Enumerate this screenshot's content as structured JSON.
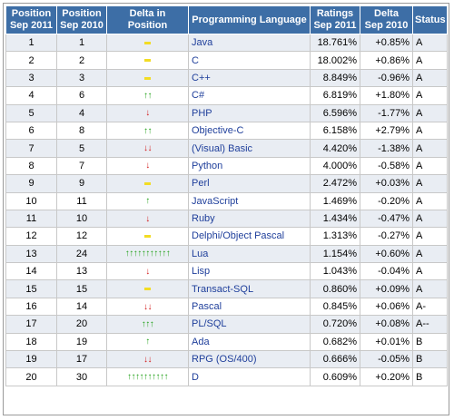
{
  "columns": [
    "Position Sep 2011",
    "Position Sep 2010",
    "Delta in Position",
    "Programming Language",
    "Ratings Sep 2011",
    "Delta Sep 2010",
    "Status"
  ],
  "headers": {
    "pos2011": [
      "Position",
      "Sep 2011"
    ],
    "pos2010": [
      "Position",
      "Sep 2010"
    ],
    "delta_pos": "Delta in Position",
    "language": "Programming Language",
    "ratings": [
      "Ratings",
      "Sep 2011"
    ],
    "delta": [
      "Delta",
      "Sep 2010"
    ],
    "status": "Status"
  },
  "colors": {
    "header_bg": "#3d6ea6",
    "link": "#1f3f9b",
    "arrow_up": "#24a21c",
    "arrow_down": "#d21a1a",
    "no_change": "#f2dc24"
  },
  "rows": [
    {
      "pos2011": "1",
      "pos2010": "1",
      "delta_pos": "=",
      "language": "Java",
      "ratings": "18.761%",
      "delta": "+0.85%",
      "status": "A"
    },
    {
      "pos2011": "2",
      "pos2010": "2",
      "delta_pos": "=",
      "language": "C",
      "ratings": "18.002%",
      "delta": "+0.86%",
      "status": "A"
    },
    {
      "pos2011": "3",
      "pos2010": "3",
      "delta_pos": "=",
      "language": "C++",
      "ratings": "8.849%",
      "delta": "-0.96%",
      "status": "A"
    },
    {
      "pos2011": "4",
      "pos2010": "6",
      "delta_pos": "up2",
      "language": "C#",
      "ratings": "6.819%",
      "delta": "+1.80%",
      "status": "A"
    },
    {
      "pos2011": "5",
      "pos2010": "4",
      "delta_pos": "down1",
      "language": "PHP",
      "ratings": "6.596%",
      "delta": "-1.77%",
      "status": "A"
    },
    {
      "pos2011": "6",
      "pos2010": "8",
      "delta_pos": "up2",
      "language": "Objective-C",
      "ratings": "6.158%",
      "delta": "+2.79%",
      "status": "A"
    },
    {
      "pos2011": "7",
      "pos2010": "5",
      "delta_pos": "down2",
      "language": "(Visual) Basic",
      "ratings": "4.420%",
      "delta": "-1.38%",
      "status": "A"
    },
    {
      "pos2011": "8",
      "pos2010": "7",
      "delta_pos": "down1",
      "language": "Python",
      "ratings": "4.000%",
      "delta": "-0.58%",
      "status": "A"
    },
    {
      "pos2011": "9",
      "pos2010": "9",
      "delta_pos": "=",
      "language": "Perl",
      "ratings": "2.472%",
      "delta": "+0.03%",
      "status": "A"
    },
    {
      "pos2011": "10",
      "pos2010": "11",
      "delta_pos": "up1",
      "language": "JavaScript",
      "ratings": "1.469%",
      "delta": "-0.20%",
      "status": "A"
    },
    {
      "pos2011": "11",
      "pos2010": "10",
      "delta_pos": "down1",
      "language": "Ruby",
      "ratings": "1.434%",
      "delta": "-0.47%",
      "status": "A"
    },
    {
      "pos2011": "12",
      "pos2010": "12",
      "delta_pos": "=",
      "language": "Delphi/Object Pascal",
      "ratings": "1.313%",
      "delta": "-0.27%",
      "status": "A"
    },
    {
      "pos2011": "13",
      "pos2010": "24",
      "delta_pos": "up11",
      "language": "Lua",
      "ratings": "1.154%",
      "delta": "+0.60%",
      "status": "A"
    },
    {
      "pos2011": "14",
      "pos2010": "13",
      "delta_pos": "down1",
      "language": "Lisp",
      "ratings": "1.043%",
      "delta": "-0.04%",
      "status": "A"
    },
    {
      "pos2011": "15",
      "pos2010": "15",
      "delta_pos": "=",
      "language": "Transact-SQL",
      "ratings": "0.860%",
      "delta": "+0.09%",
      "status": "A"
    },
    {
      "pos2011": "16",
      "pos2010": "14",
      "delta_pos": "down2",
      "language": "Pascal",
      "ratings": "0.845%",
      "delta": "+0.06%",
      "status": "A-"
    },
    {
      "pos2011": "17",
      "pos2010": "20",
      "delta_pos": "up3",
      "language": "PL/SQL",
      "ratings": "0.720%",
      "delta": "+0.08%",
      "status": "A--"
    },
    {
      "pos2011": "18",
      "pos2010": "19",
      "delta_pos": "up1",
      "language": "Ada",
      "ratings": "0.682%",
      "delta": "+0.01%",
      "status": "B"
    },
    {
      "pos2011": "19",
      "pos2010": "17",
      "delta_pos": "down2",
      "language": "RPG (OS/400)",
      "ratings": "0.666%",
      "delta": "-0.05%",
      "status": "B"
    },
    {
      "pos2011": "20",
      "pos2010": "30",
      "delta_pos": "up10",
      "language": "D",
      "ratings": "0.609%",
      "delta": "+0.20%",
      "status": "B"
    }
  ]
}
